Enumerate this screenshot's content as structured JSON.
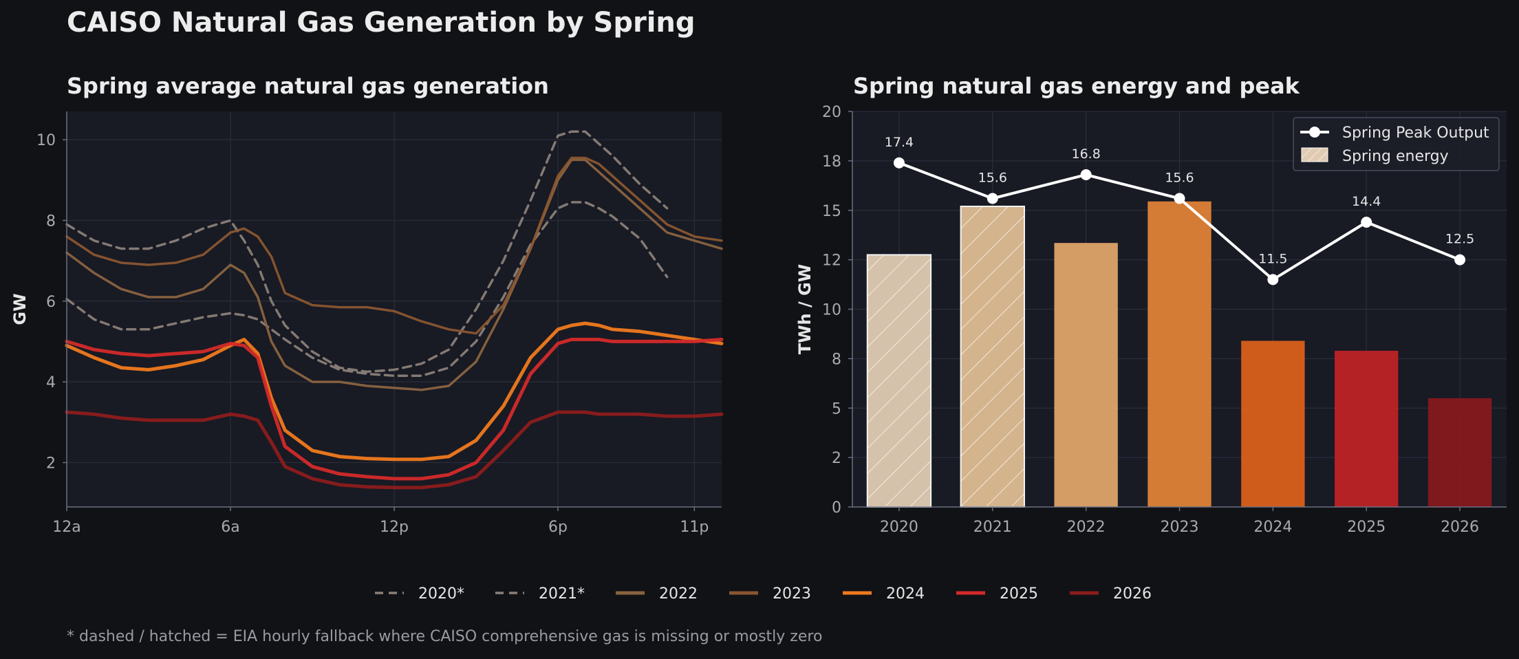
{
  "title": "CAISO Natural Gas Generation by Spring",
  "footnote": "* dashed / hatched = EIA hourly fallback where CAISO comprehensive gas is missing or mostly zero",
  "colors": {
    "background": "#111216",
    "panel": "#181a24",
    "grid": "#2b2e3b",
    "axis": "#6a6e80"
  },
  "chart_data": [
    {
      "type": "line",
      "title": "Spring average natural gas generation",
      "ylabel": "GW",
      "xlim": [
        0,
        24
      ],
      "ylim": [
        0.9,
        10.7
      ],
      "yticks": [
        2,
        4,
        6,
        8,
        10
      ],
      "xticks": [
        {
          "label": "12a",
          "x": 0
        },
        {
          "label": "6a",
          "x": 6
        },
        {
          "label": "12p",
          "x": 12
        },
        {
          "label": "6p",
          "x": 18
        },
        {
          "label": "11p",
          "x": 23
        }
      ],
      "x": [
        0,
        1,
        2,
        3,
        4,
        5,
        6,
        6.5,
        7,
        7.5,
        8,
        9,
        10,
        11,
        12,
        13,
        14,
        15,
        16,
        17,
        18,
        18.5,
        19,
        19.5,
        20,
        21,
        22,
        23,
        24
      ],
      "series": [
        {
          "name": "2020*",
          "color": "#8a8078",
          "dashed": true,
          "width": 3.5,
          "values": [
            7.9,
            7.5,
            7.3,
            7.3,
            7.5,
            7.8,
            8.0,
            7.5,
            6.9,
            6.0,
            5.4,
            4.75,
            4.35,
            4.25,
            4.3,
            4.45,
            4.8,
            5.8,
            7.0,
            8.5,
            10.1,
            10.2,
            10.2,
            9.9,
            9.6,
            8.9,
            8.3,
            null,
            null
          ]
        },
        {
          "name": "2021*",
          "color": "#8a8078",
          "dashed": true,
          "width": 3.5,
          "values": [
            6.05,
            5.55,
            5.3,
            5.3,
            5.45,
            5.6,
            5.7,
            5.65,
            5.55,
            5.3,
            5.05,
            4.6,
            4.3,
            4.2,
            4.15,
            4.15,
            4.35,
            5.0,
            6.1,
            7.4,
            8.3,
            8.45,
            8.45,
            8.3,
            8.1,
            7.55,
            6.6,
            null,
            null
          ]
        },
        {
          "name": "2022",
          "color": "#8a6440",
          "dashed": false,
          "width": 3.5,
          "values": [
            7.2,
            6.7,
            6.3,
            6.1,
            6.1,
            6.3,
            6.9,
            6.7,
            6.1,
            5.0,
            4.4,
            4.0,
            4.0,
            3.9,
            3.85,
            3.8,
            3.9,
            4.5,
            5.8,
            7.3,
            9.0,
            9.5,
            9.5,
            9.2,
            8.9,
            8.3,
            7.7,
            7.5,
            7.3
          ]
        },
        {
          "name": "2023",
          "color": "#8a5630",
          "dashed": false,
          "width": 3.5,
          "values": [
            7.6,
            7.15,
            6.95,
            6.9,
            6.95,
            7.15,
            7.7,
            7.8,
            7.6,
            7.1,
            6.2,
            5.9,
            5.85,
            5.85,
            5.75,
            5.5,
            5.3,
            5.2,
            5.9,
            7.3,
            9.1,
            9.55,
            9.55,
            9.4,
            9.1,
            8.5,
            7.9,
            7.6,
            7.5
          ]
        },
        {
          "name": "2024",
          "color": "#f07a1e",
          "dashed": false,
          "width": 5,
          "values": [
            4.9,
            4.6,
            4.35,
            4.3,
            4.4,
            4.55,
            4.9,
            5.05,
            4.7,
            3.6,
            2.8,
            2.3,
            2.15,
            2.1,
            2.08,
            2.08,
            2.15,
            2.55,
            3.4,
            4.6,
            5.3,
            5.4,
            5.45,
            5.4,
            5.3,
            5.25,
            5.15,
            5.05,
            4.95
          ]
        },
        {
          "name": "2025",
          "color": "#d42a2a",
          "dashed": false,
          "width": 5,
          "values": [
            5.0,
            4.8,
            4.7,
            4.65,
            4.7,
            4.75,
            4.95,
            4.9,
            4.6,
            3.4,
            2.4,
            1.9,
            1.72,
            1.65,
            1.6,
            1.6,
            1.7,
            2.0,
            2.8,
            4.2,
            4.95,
            5.05,
            5.05,
            5.05,
            5.0,
            5.0,
            5.0,
            5.0,
            5.05
          ]
        },
        {
          "name": "2026",
          "color": "#8c1c1c",
          "dashed": false,
          "width": 5,
          "values": [
            3.25,
            3.2,
            3.1,
            3.05,
            3.05,
            3.05,
            3.2,
            3.15,
            3.05,
            2.5,
            1.9,
            1.6,
            1.45,
            1.4,
            1.38,
            1.38,
            1.45,
            1.65,
            2.3,
            3.0,
            3.25,
            3.25,
            3.25,
            3.2,
            3.2,
            3.2,
            3.15,
            3.15,
            3.2
          ]
        }
      ]
    },
    {
      "type": "bar",
      "title": "Spring natural gas energy and peak",
      "ylabel": "TWh / GW",
      "ylim": [
        0,
        20
      ],
      "yticks": [
        {
          "v": 0,
          "label": "0"
        },
        {
          "v": 2.5,
          "label": "2"
        },
        {
          "v": 5,
          "label": "5"
        },
        {
          "v": 7.5,
          "label": "8"
        },
        {
          "v": 10,
          "label": "10"
        },
        {
          "v": 12.5,
          "label": "12"
        },
        {
          "v": 15,
          "label": "15"
        },
        {
          "v": 17.5,
          "label": "18"
        },
        {
          "v": 20,
          "label": "20"
        }
      ],
      "categories": [
        "2020",
        "2021",
        "2022",
        "2023",
        "2024",
        "2025",
        "2026"
      ],
      "bars": {
        "name": "Spring energy",
        "values": [
          12.75,
          15.2,
          13.35,
          15.45,
          8.4,
          7.9,
          5.5
        ],
        "colors": [
          "#e0cbb2",
          "#dfbd93",
          "#dea46a",
          "#de8238",
          "#d9601a",
          "#bd2327",
          "#86191d"
        ],
        "hatched": [
          true,
          true,
          false,
          false,
          false,
          false,
          false
        ]
      },
      "line": {
        "name": "Spring Peak Output",
        "values": [
          17.4,
          15.6,
          16.8,
          15.6,
          11.5,
          14.4,
          12.5
        ],
        "labels": [
          "17.4",
          "15.6",
          "16.8",
          "15.6",
          "11.5",
          "14.4",
          "12.5"
        ],
        "color": "#ffffff"
      },
      "legend_position": "top-right"
    }
  ],
  "bottom_legend": [
    {
      "label": "2020*",
      "color": "#8a8078",
      "dashed": true
    },
    {
      "label": "2021*",
      "color": "#8a8078",
      "dashed": true
    },
    {
      "label": "2022",
      "color": "#8a6440",
      "dashed": false
    },
    {
      "label": "2023",
      "color": "#8a5630",
      "dashed": false
    },
    {
      "label": "2024",
      "color": "#f07a1e",
      "dashed": false
    },
    {
      "label": "2025",
      "color": "#d42a2a",
      "dashed": false
    },
    {
      "label": "2026",
      "color": "#8c1c1c",
      "dashed": false
    }
  ]
}
